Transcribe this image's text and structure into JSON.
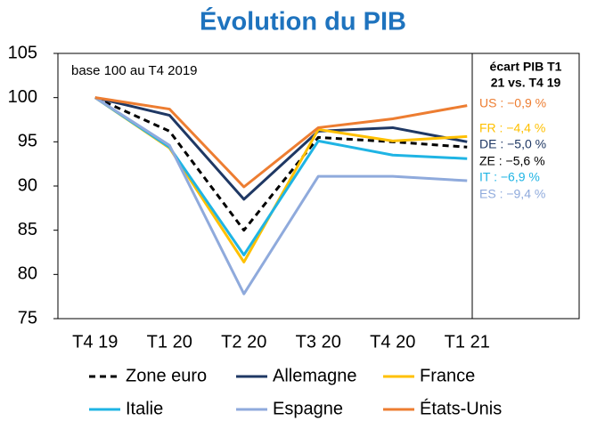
{
  "chart_data": {
    "type": "line",
    "title": "Évolution du PIB",
    "categories": [
      "T4 19",
      "T1 20",
      "T2 20",
      "T3 20",
      "T4 20",
      "T1 21"
    ],
    "series": [
      {
        "name": "Zone euro",
        "color": "#000000",
        "dashed": true,
        "values": [
          100,
          96.2,
          85.0,
          95.5,
          95.0,
          94.4
        ]
      },
      {
        "name": "Allemagne",
        "color": "#1f3864",
        "values": [
          100,
          98.0,
          88.5,
          96.2,
          96.6,
          95.0
        ]
      },
      {
        "name": "France",
        "color": "#ffc000",
        "values": [
          100,
          94.3,
          81.4,
          96.4,
          95.1,
          95.6
        ]
      },
      {
        "name": "Italie",
        "color": "#1fb4e4",
        "values": [
          100,
          94.4,
          82.2,
          95.1,
          93.5,
          93.1
        ]
      },
      {
        "name": "Espagne",
        "color": "#8faadc",
        "values": [
          100,
          94.6,
          77.8,
          91.1,
          91.1,
          90.6
        ]
      },
      {
        "name": "États-Unis",
        "color": "#ed7d31",
        "values": [
          100,
          98.7,
          89.9,
          96.6,
          97.6,
          99.1
        ]
      }
    ],
    "ylim": [
      75,
      105
    ],
    "yticks": [
      75,
      80,
      85,
      90,
      95,
      100,
      105
    ],
    "grid": false,
    "note": "base 100 au T4 2019",
    "box_header": [
      "écart PIB T1",
      "21 vs. T4 19"
    ],
    "box_labels": [
      {
        "text": "US : −0,9 %",
        "color": "#ed7d31"
      },
      {
        "text": "FR : −4,4 %",
        "color": "#ffc000"
      },
      {
        "text": "DE : −5,0 %",
        "color": "#1f3864"
      },
      {
        "text": "ZE : −5,6 %",
        "color": "#000000"
      },
      {
        "text": "IT : −6,9 %",
        "color": "#1fb4e4"
      },
      {
        "text": "ES : −9,4 %",
        "color": "#8faadc"
      }
    ]
  }
}
